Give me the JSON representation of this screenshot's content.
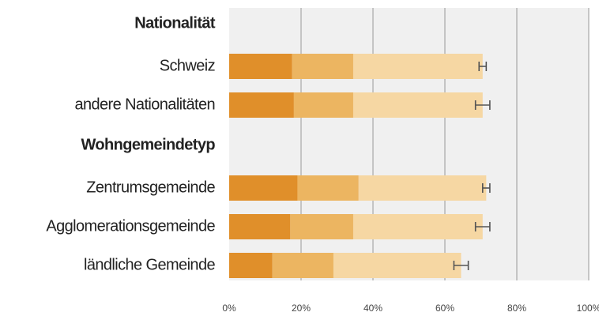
{
  "chart_data": {
    "type": "stacked-bar-horizontal",
    "colors": [
      "#e08f2a",
      "#ecb561",
      "#f6d7a3"
    ],
    "error_color": "#555555",
    "groups": [
      {
        "name": "Nationalität",
        "rows": [
          {
            "label": "Schweiz",
            "values": [
              17.5,
              17,
              36
            ],
            "error": 1
          },
          {
            "label": "andere Nationalitäten",
            "values": [
              18,
              16.5,
              36
            ],
            "error": 2
          }
        ]
      },
      {
        "name": "Wohngemeindetyp",
        "rows": [
          {
            "label": "Zentrumsgemeinde",
            "values": [
              19,
              17,
              35.5
            ],
            "error": 1
          },
          {
            "label": "Agglomerationsgemeinde",
            "values": [
              17,
              17.5,
              36
            ],
            "error": 2
          },
          {
            "label": "ländliche Gemeinde",
            "values": [
              12,
              17,
              35.5
            ],
            "error": 2
          }
        ]
      }
    ],
    "xlim": [
      0,
      100
    ],
    "xticks": [
      {
        "value": 0,
        "label": "0%"
      },
      {
        "value": 20,
        "label": "20%"
      },
      {
        "value": 40,
        "label": "40%"
      },
      {
        "value": 60,
        "label": "60%"
      },
      {
        "value": 80,
        "label": "80%"
      },
      {
        "value": 100,
        "label": "100%"
      }
    ],
    "grid": true
  }
}
